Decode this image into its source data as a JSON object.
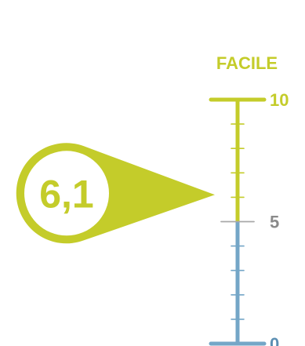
{
  "chart_data": {
    "type": "gauge",
    "title": "FACILE",
    "value": 6.1,
    "value_label": "6,1",
    "scale_min": 0,
    "scale_max": 10,
    "ticks": [
      0,
      1,
      2,
      3,
      4,
      5,
      6,
      7,
      8,
      9,
      10
    ],
    "tick_labels": [
      {
        "value": 10,
        "text": "10"
      },
      {
        "value": 5,
        "text": "5"
      },
      {
        "value": 0,
        "text": "0"
      }
    ],
    "segments": [
      {
        "from": 0,
        "to": 5,
        "color": "#74a6c7"
      },
      {
        "from": 5,
        "to": 10,
        "color": "#c4cc2a"
      }
    ],
    "colors": {
      "accent": "#c4cc2a",
      "low": "#74a6c7",
      "mid_tick": "#a8a8a8",
      "label_gray": "#8a8a8a",
      "low_label": "#5c8fb3"
    }
  }
}
